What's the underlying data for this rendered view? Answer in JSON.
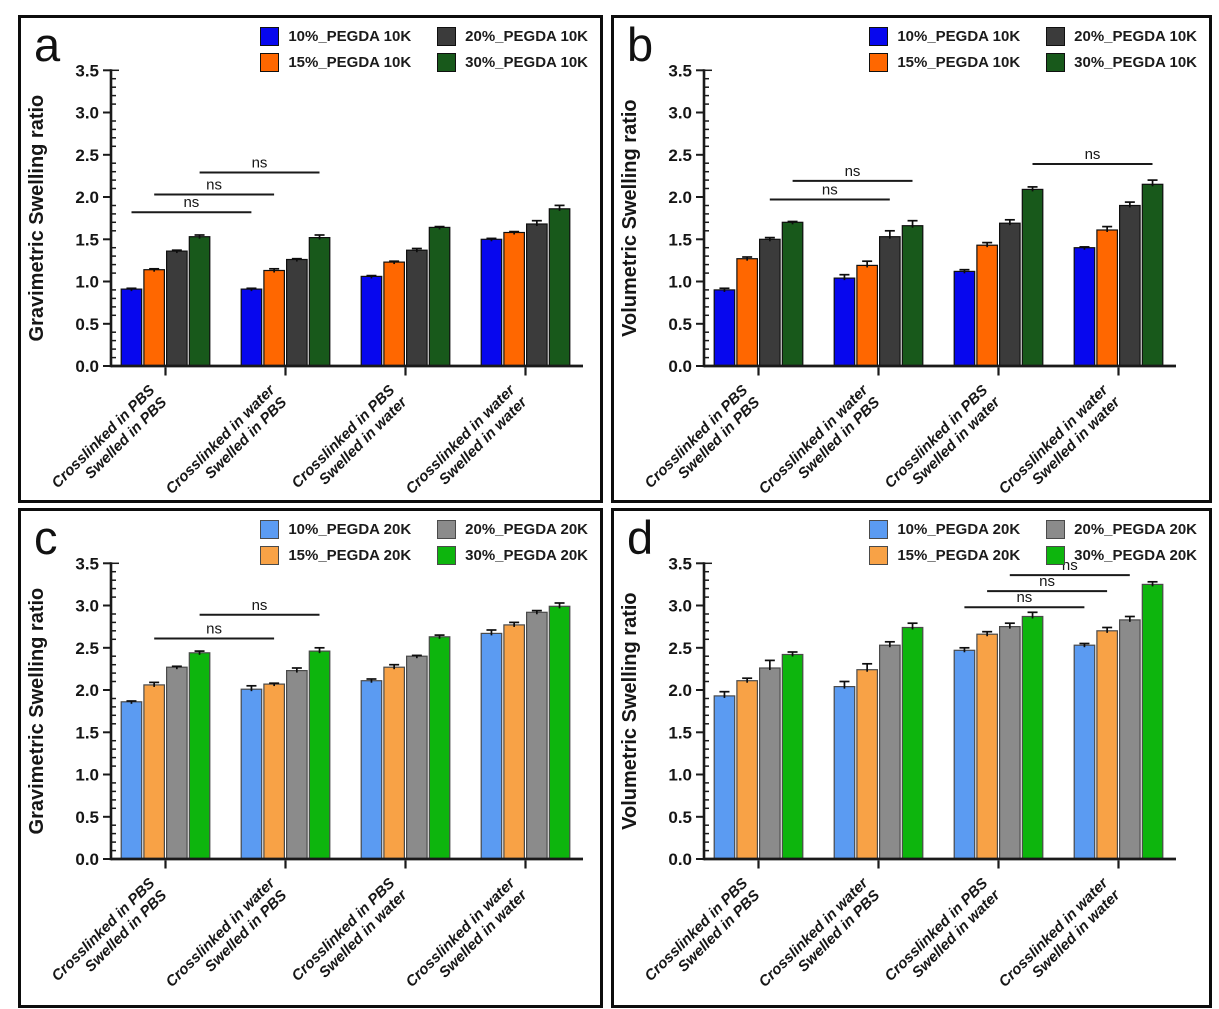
{
  "figure": {
    "background": "#ffffff",
    "error_bar_color": "#0d0d0d",
    "axis_color": "#1a1a1a"
  },
  "chart_data": [
    {
      "panel": "a",
      "type": "bar",
      "ylabel": "Gravimetric Swelling ratio",
      "ylim": [
        0,
        3.5
      ],
      "ytick_step": 0.5,
      "grid": false,
      "legend_position": "top-right",
      "categories": [
        [
          "Crosslinked in PBS",
          "Swelled in PBS"
        ],
        [
          "Crosslinked in water",
          "Swelled in PBS"
        ],
        [
          "Crosslinked in PBS",
          "Swelled in water"
        ],
        [
          "Crosslinked in water",
          "Swelled in water"
        ]
      ],
      "series": [
        {
          "name": "10%_PEGDA 10K",
          "color": "#0707ee",
          "edge": "#101010",
          "values": [
            0.91,
            0.91,
            1.06,
            1.5
          ],
          "errors": [
            0.01,
            0.01,
            0.01,
            0.01
          ]
        },
        {
          "name": "15%_PEGDA 10K",
          "color": "#ff6700",
          "edge": "#101010",
          "values": [
            1.14,
            1.13,
            1.23,
            1.58
          ],
          "errors": [
            0.01,
            0.02,
            0.01,
            0.01
          ]
        },
        {
          "name": "20%_PEGDA 10K",
          "color": "#3b3b3b",
          "edge": "#101010",
          "values": [
            1.36,
            1.26,
            1.37,
            1.68
          ],
          "errors": [
            0.01,
            0.01,
            0.02,
            0.04
          ]
        },
        {
          "name": "30%_PEGDA 10K",
          "color": "#18591b",
          "edge": "#101010",
          "values": [
            1.53,
            1.52,
            1.64,
            1.86
          ],
          "errors": [
            0.02,
            0.03,
            0.01,
            0.04
          ]
        }
      ],
      "significance": [
        {
          "label": "ns",
          "y": 1.82,
          "from": [
            0,
            0
          ],
          "to": [
            1,
            0
          ]
        },
        {
          "label": "ns",
          "y": 2.03,
          "from": [
            0,
            1
          ],
          "to": [
            1,
            1
          ]
        },
        {
          "label": "ns",
          "y": 2.29,
          "from": [
            0,
            3
          ],
          "to": [
            1,
            3
          ]
        }
      ]
    },
    {
      "panel": "b",
      "type": "bar",
      "ylabel": "Volumetric Swelling ratio",
      "ylim": [
        0,
        3.5
      ],
      "ytick_step": 0.5,
      "grid": false,
      "legend_position": "top-right",
      "categories": [
        [
          "Crosslinked in PBS",
          "Swelled in PBS"
        ],
        [
          "Crosslinked in water",
          "Swelled in PBS"
        ],
        [
          "Crosslinked in PBS",
          "Swelled in water"
        ],
        [
          "Crosslinked in water",
          "Swelled in water"
        ]
      ],
      "series": [
        {
          "name": "10%_PEGDA 10K",
          "color": "#0707ee",
          "edge": "#101010",
          "values": [
            0.9,
            1.04,
            1.12,
            1.4
          ],
          "errors": [
            0.02,
            0.04,
            0.02,
            0.01
          ]
        },
        {
          "name": "15%_PEGDA 10K",
          "color": "#ff6700",
          "edge": "#101010",
          "values": [
            1.27,
            1.19,
            1.43,
            1.61
          ],
          "errors": [
            0.02,
            0.05,
            0.03,
            0.04
          ]
        },
        {
          "name": "20%_PEGDA 10K",
          "color": "#3b3b3b",
          "edge": "#101010",
          "values": [
            1.5,
            1.53,
            1.69,
            1.9
          ],
          "errors": [
            0.02,
            0.07,
            0.04,
            0.04
          ]
        },
        {
          "name": "30%_PEGDA 10K",
          "color": "#18591b",
          "edge": "#101010",
          "values": [
            1.7,
            1.66,
            2.09,
            2.15
          ],
          "errors": [
            0.01,
            0.06,
            0.03,
            0.05
          ]
        }
      ],
      "significance": [
        {
          "label": "ns",
          "y": 1.97,
          "from": [
            0,
            2
          ],
          "to": [
            1,
            2
          ]
        },
        {
          "label": "ns",
          "y": 2.19,
          "from": [
            0,
            3
          ],
          "to": [
            1,
            3
          ]
        },
        {
          "label": "ns",
          "y": 2.39,
          "from": [
            2,
            3
          ],
          "to": [
            3,
            3
          ]
        }
      ]
    },
    {
      "panel": "c",
      "type": "bar",
      "ylabel": "Gravimetric Swelling ratio",
      "ylim": [
        0,
        3.5
      ],
      "ytick_step": 0.5,
      "grid": false,
      "legend_position": "top-right",
      "categories": [
        [
          "Crosslinked in PBS",
          "Swelled in PBS"
        ],
        [
          "Crosslinked in water",
          "Swelled in PBS"
        ],
        [
          "Crosslinked in PBS",
          "Swelled in water"
        ],
        [
          "Crosslinked in water",
          "Swelled in water"
        ]
      ],
      "series": [
        {
          "name": "10%_PEGDA 20K",
          "color": "#5b9bf2",
          "edge": "#4a4a4a",
          "values": [
            1.86,
            2.01,
            2.11,
            2.67
          ],
          "errors": [
            0.01,
            0.04,
            0.02,
            0.04
          ]
        },
        {
          "name": "15%_PEGDA 20K",
          "color": "#f8a246",
          "edge": "#4a4a4a",
          "values": [
            2.06,
            2.07,
            2.27,
            2.77
          ],
          "errors": [
            0.03,
            0.01,
            0.03,
            0.03
          ]
        },
        {
          "name": "20%_PEGDA 20K",
          "color": "#8b8b8b",
          "edge": "#4a4a4a",
          "values": [
            2.27,
            2.23,
            2.4,
            2.92
          ],
          "errors": [
            0.01,
            0.03,
            0.01,
            0.02
          ]
        },
        {
          "name": "30%_PEGDA 20K",
          "color": "#0db50d",
          "edge": "#4a4a4a",
          "values": [
            2.44,
            2.46,
            2.63,
            2.99
          ],
          "errors": [
            0.02,
            0.04,
            0.02,
            0.04
          ]
        }
      ],
      "significance": [
        {
          "label": "ns",
          "y": 2.61,
          "from": [
            0,
            1
          ],
          "to": [
            1,
            1
          ]
        },
        {
          "label": "ns",
          "y": 2.89,
          "from": [
            0,
            3
          ],
          "to": [
            1,
            3
          ]
        }
      ]
    },
    {
      "panel": "d",
      "type": "bar",
      "ylabel": "Volumetric Swelling ratio",
      "ylim": [
        0,
        3.5
      ],
      "ytick_step": 0.5,
      "grid": false,
      "legend_position": "top-right",
      "categories": [
        [
          "Crosslinked in PBS",
          "Swelled in PBS"
        ],
        [
          "Crosslinked in water",
          "Swelled in PBS"
        ],
        [
          "Crosslinked in PBS",
          "Swelled in water"
        ],
        [
          "Crosslinked in water",
          "Swelled in water"
        ]
      ],
      "series": [
        {
          "name": "10%_PEGDA 20K",
          "color": "#5b9bf2",
          "edge": "#4a4a4a",
          "values": [
            1.93,
            2.04,
            2.47,
            2.53
          ],
          "errors": [
            0.05,
            0.06,
            0.03,
            0.02
          ]
        },
        {
          "name": "15%_PEGDA 20K",
          "color": "#f8a246",
          "edge": "#4a4a4a",
          "values": [
            2.11,
            2.24,
            2.66,
            2.7
          ],
          "errors": [
            0.03,
            0.07,
            0.03,
            0.04
          ]
        },
        {
          "name": "20%_PEGDA 20K",
          "color": "#8b8b8b",
          "edge": "#4a4a4a",
          "values": [
            2.26,
            2.53,
            2.75,
            2.83
          ],
          "errors": [
            0.09,
            0.04,
            0.04,
            0.04
          ]
        },
        {
          "name": "30%_PEGDA 20K",
          "color": "#0db50d",
          "edge": "#4a4a4a",
          "values": [
            2.42,
            2.74,
            2.87,
            3.25
          ],
          "errors": [
            0.03,
            0.05,
            0.05,
            0.03
          ]
        }
      ],
      "significance": [
        {
          "label": "ns",
          "y": 2.98,
          "from": [
            2,
            0
          ],
          "to": [
            3,
            0
          ]
        },
        {
          "label": "ns",
          "y": 3.17,
          "from": [
            2,
            1
          ],
          "to": [
            3,
            1
          ]
        },
        {
          "label": "ns",
          "y": 3.36,
          "from": [
            2,
            2
          ],
          "to": [
            3,
            2
          ]
        }
      ]
    }
  ]
}
